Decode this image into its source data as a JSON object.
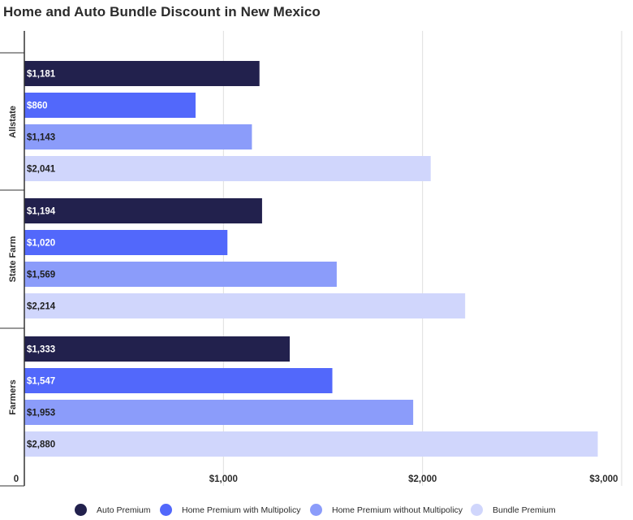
{
  "chart_data": {
    "type": "bar",
    "orientation": "horizontal",
    "title": "Home and Auto Bundle Discount in New Mexico",
    "categories": [
      "Allstate",
      "State Farm",
      "Farmers"
    ],
    "series": [
      {
        "name": "Auto Premium",
        "color": "#22214d",
        "values": [
          1181,
          1194,
          1333
        ],
        "labels": [
          "$1,181",
          "$1,194",
          "$1,333"
        ]
      },
      {
        "name": "Home Premium with Multipolicy",
        "color": "#5268fb",
        "values": [
          860,
          1020,
          1547
        ],
        "labels": [
          "$860",
          "$1,020",
          "$1,547"
        ]
      },
      {
        "name": "Home Premium without Multipolicy",
        "color": "#8b9cfa",
        "values": [
          1143,
          1569,
          1953
        ],
        "labels": [
          "$1,143",
          "$1,569",
          "$1,953"
        ]
      },
      {
        "name": "Bundle Premium",
        "color": "#d0d6fc",
        "values": [
          2041,
          2214,
          2880
        ],
        "labels": [
          "$2,041",
          "$2,214",
          "$2,880"
        ]
      }
    ],
    "xlim": [
      0,
      3000
    ],
    "xticks": [
      0,
      1000,
      2000,
      3000
    ],
    "xtick_labels": [
      "0",
      "$1,000",
      "$2,000",
      "$3,000"
    ],
    "grid": true,
    "legend_position": "bottom"
  }
}
